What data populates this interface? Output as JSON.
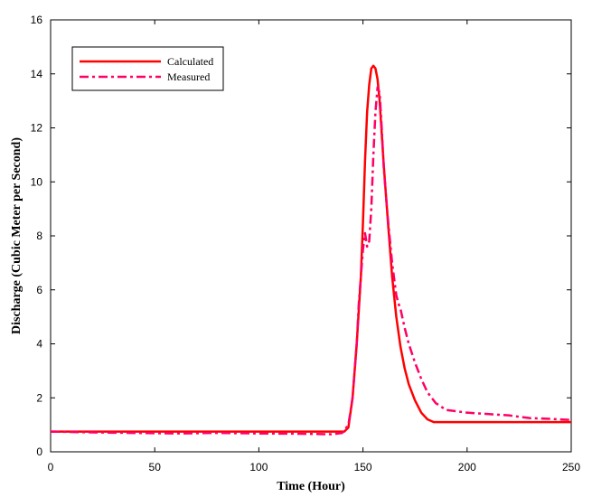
{
  "chart_data": {
    "type": "line",
    "title": "",
    "xlabel": "Time (Hour)",
    "ylabel": "Discharge (Cubic Meter per Second)",
    "xlim": [
      0,
      250
    ],
    "ylim": [
      0,
      16
    ],
    "xticks": [
      0,
      50,
      100,
      150,
      200,
      250
    ],
    "yticks": [
      0,
      2,
      4,
      6,
      8,
      10,
      12,
      14,
      16
    ],
    "grid": false,
    "legend_position": "top-left",
    "series": [
      {
        "name": "Calculated",
        "color": "#ff0000",
        "style": "solid",
        "points": [
          [
            0,
            0.75
          ],
          [
            50,
            0.75
          ],
          [
            100,
            0.75
          ],
          [
            141,
            0.75
          ],
          [
            143,
            0.9
          ],
          [
            145,
            2.0
          ],
          [
            147,
            4.0
          ],
          [
            149,
            6.5
          ],
          [
            150,
            8.5
          ],
          [
            151,
            10.8
          ],
          [
            152,
            12.6
          ],
          [
            153,
            13.6
          ],
          [
            154,
            14.2
          ],
          [
            155,
            14.3
          ],
          [
            156,
            14.2
          ],
          [
            157,
            13.8
          ],
          [
            158,
            13.0
          ],
          [
            159,
            11.8
          ],
          [
            160,
            10.6
          ],
          [
            162,
            8.5
          ],
          [
            164,
            6.5
          ],
          [
            166,
            5.0
          ],
          [
            168,
            3.9
          ],
          [
            170,
            3.1
          ],
          [
            172,
            2.5
          ],
          [
            175,
            1.9
          ],
          [
            178,
            1.45
          ],
          [
            181,
            1.2
          ],
          [
            184,
            1.1
          ],
          [
            187,
            1.1
          ],
          [
            200,
            1.1
          ],
          [
            250,
            1.1
          ]
        ]
      },
      {
        "name": "Measured",
        "color": "#ff0066",
        "style": "dashdot",
        "points": [
          [
            0,
            0.75
          ],
          [
            20,
            0.72
          ],
          [
            40,
            0.7
          ],
          [
            60,
            0.68
          ],
          [
            80,
            0.7
          ],
          [
            100,
            0.68
          ],
          [
            120,
            0.67
          ],
          [
            135,
            0.65
          ],
          [
            140,
            0.7
          ],
          [
            143,
            1.0
          ],
          [
            145,
            2.0
          ],
          [
            147,
            4.0
          ],
          [
            148,
            5.5
          ],
          [
            149,
            6.5
          ],
          [
            150,
            7.5
          ],
          [
            151,
            8.1
          ],
          [
            152,
            7.6
          ],
          [
            153,
            7.8
          ],
          [
            154,
            9.0
          ],
          [
            155,
            11.0
          ],
          [
            156,
            12.6
          ],
          [
            157,
            13.5
          ],
          [
            158,
            13.3
          ],
          [
            159,
            12.0
          ],
          [
            160,
            10.5
          ],
          [
            162,
            8.6
          ],
          [
            164,
            7.0
          ],
          [
            166,
            5.8
          ],
          [
            167,
            5.5
          ],
          [
            168,
            5.3
          ],
          [
            170,
            4.6
          ],
          [
            172,
            4.0
          ],
          [
            175,
            3.3
          ],
          [
            178,
            2.7
          ],
          [
            181,
            2.2
          ],
          [
            185,
            1.8
          ],
          [
            190,
            1.55
          ],
          [
            200,
            1.45
          ],
          [
            210,
            1.4
          ],
          [
            220,
            1.35
          ],
          [
            230,
            1.25
          ],
          [
            240,
            1.22
          ],
          [
            250,
            1.18
          ]
        ]
      }
    ]
  }
}
